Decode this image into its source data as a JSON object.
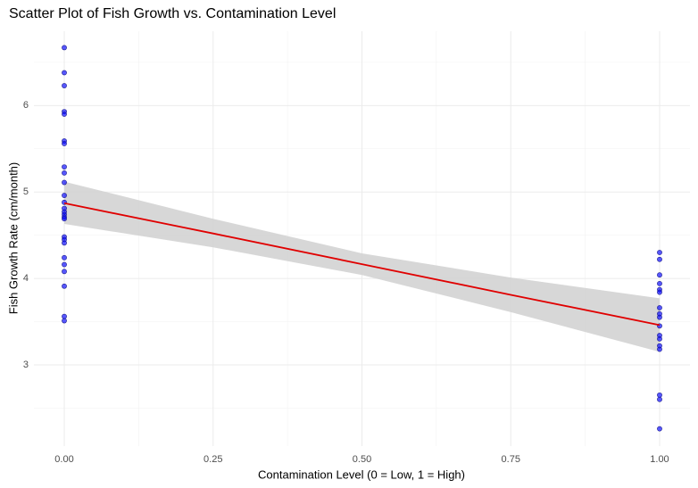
{
  "chart_data": {
    "type": "scatter",
    "title": "Scatter Plot of Fish Growth vs. Contamination Level",
    "x_label": "Contamination Level (0 = Low, 1 = High)",
    "y_label": "Fish Growth Rate (cm/month)",
    "xlim": [
      -0.051,
      1.051
    ],
    "ylim": [
      2.06,
      6.86
    ],
    "xticks": [
      {
        "value": 0,
        "label": "0.00"
      },
      {
        "value": 0.25,
        "label": "0.25"
      },
      {
        "value": 0.5,
        "label": "0.50"
      },
      {
        "value": 0.75,
        "label": "0.75"
      },
      {
        "value": 1,
        "label": "1.00"
      }
    ],
    "yticks": [
      3,
      4,
      5,
      6
    ],
    "xminor": [
      0.125,
      0.375,
      0.625,
      0.875
    ],
    "yminor": [
      2.5,
      3.5,
      4.5,
      5.5,
      6.5
    ],
    "grid": true,
    "points": {
      "color": "#0000ff",
      "x": [
        0,
        0,
        0,
        0,
        0,
        0,
        0,
        0,
        0,
        0,
        0,
        0,
        0,
        0,
        0,
        0,
        0,
        0,
        0,
        0,
        0,
        0,
        0,
        0,
        0,
        0,
        1,
        1,
        1,
        1,
        1,
        1,
        1,
        1,
        1,
        1,
        1,
        1,
        1,
        1,
        1,
        1,
        1
      ],
      "y": [
        6.67,
        6.38,
        6.23,
        5.93,
        5.9,
        5.59,
        5.56,
        5.29,
        5.22,
        5.11,
        4.96,
        4.88,
        4.81,
        4.77,
        4.74,
        4.71,
        4.69,
        4.48,
        4.45,
        4.41,
        4.24,
        4.16,
        4.08,
        3.91,
        3.56,
        3.51,
        4.3,
        4.22,
        4.04,
        3.94,
        3.87,
        3.84,
        3.66,
        3.59,
        3.55,
        3.45,
        3.34,
        3.3,
        3.22,
        3.18,
        2.65,
        2.6,
        2.26
      ]
    },
    "fit": {
      "color": "#e00000",
      "band_color": "#d3d3d3",
      "x": [
        0,
        0.25,
        0.5,
        0.75,
        1
      ],
      "y": [
        4.87,
        4.52,
        4.165,
        3.81,
        3.46
      ],
      "lower": [
        4.63,
        4.36,
        4.04,
        3.61,
        3.15
      ],
      "upper": [
        5.12,
        4.69,
        4.29,
        4.01,
        3.77
      ]
    }
  }
}
